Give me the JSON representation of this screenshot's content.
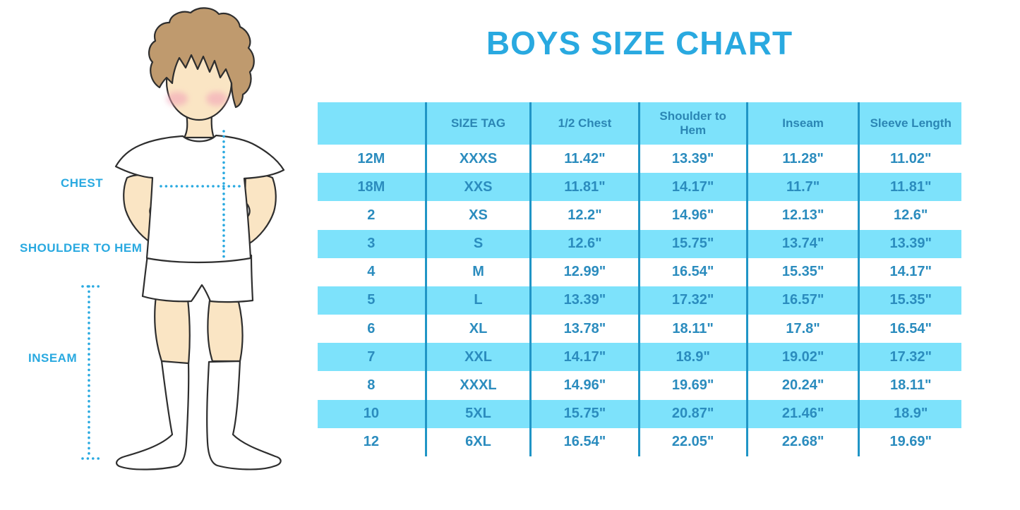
{
  "page": {
    "title": "BOYS SIZE CHART"
  },
  "figure": {
    "description": "illustration of a boy in white t-shirt, shorts and knee socks with dotted measurement guides",
    "labels": {
      "chest": "CHEST",
      "shoulder_to_hem": "SHOULDER TO HEM",
      "inseam": "INSEAM"
    }
  },
  "colors": {
    "accent_blue": "#29A9E0",
    "table_text": "#2B8CBE",
    "row_stripe": "#7DE2FB",
    "grid_line": "#2095C6",
    "skin": "#FAE5C4",
    "hair": "#BF9A6E",
    "cheek": "#F2A4B8"
  },
  "chart_data": {
    "type": "table",
    "title": "BOYS SIZE CHART",
    "columns": [
      "",
      "SIZE TAG",
      "1/2 Chest",
      "Shoulder to\nHem",
      "Inseam",
      "Sleeve Length"
    ],
    "rows": [
      [
        "12M",
        "XXXS",
        "11.42\"",
        "13.39\"",
        "11.28\"",
        "11.02\""
      ],
      [
        "18M",
        "XXS",
        "11.81\"",
        "14.17\"",
        "11.7\"",
        "11.81\""
      ],
      [
        "2",
        "XS",
        "12.2\"",
        "14.96\"",
        "12.13\"",
        "12.6\""
      ],
      [
        "3",
        "S",
        "12.6\"",
        "15.75\"",
        "13.74\"",
        "13.39\""
      ],
      [
        "4",
        "M",
        "12.99\"",
        "16.54\"",
        "15.35\"",
        "14.17\""
      ],
      [
        "5",
        "L",
        "13.39\"",
        "17.32\"",
        "16.57\"",
        "15.35\""
      ],
      [
        "6",
        "XL",
        "13.78\"",
        "18.11\"",
        "17.8\"",
        "16.54\""
      ],
      [
        "7",
        "XXL",
        "14.17\"",
        "18.9\"",
        "19.02\"",
        "17.32\""
      ],
      [
        "8",
        "XXXL",
        "14.96\"",
        "19.69\"",
        "20.24\"",
        "18.11\""
      ],
      [
        "10",
        "5XL",
        "15.75\"",
        "20.87\"",
        "21.46\"",
        "18.9\""
      ],
      [
        "12",
        "6XL",
        "16.54\"",
        "22.05\"",
        "22.68\"",
        "19.69\""
      ]
    ],
    "column_widths_pct": [
      16.8,
      16.3,
      16.8,
      16.8,
      17.4,
      15.9
    ],
    "stripe_pattern": "header and every 2nd data row light cyan"
  }
}
